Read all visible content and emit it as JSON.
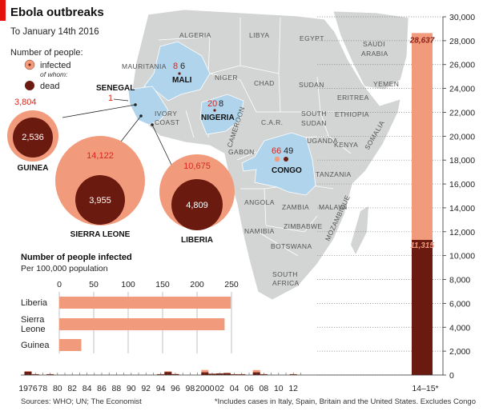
{
  "colors": {
    "infected": "#F19B7C",
    "dead": "#6B1A0F",
    "map_land": "#D3D4D4",
    "map_highlight": "#AFD4EC",
    "accent_red": "#E3120B",
    "number_red": "#D8281E"
  },
  "header": {
    "title": "Ebola outbreaks",
    "subtitle": "To January 14th 2016"
  },
  "legend": {
    "title": "Number of people:",
    "infected": "infected",
    "of_whom": "of whom:",
    "dead": "dead"
  },
  "map": {
    "country_labels": [
      "ALGERIA",
      "LIBYA",
      "EGYPT",
      "SAUDI",
      "ARABIA",
      "MAURITANIA",
      "NIGER",
      "CHAD",
      "SUDAN",
      "YEMEN",
      "ERITREA",
      "ETHIOPIA",
      "SOUTH",
      "SUDAN",
      "C.A.R.",
      "CAMEROON",
      "IVORY",
      "COAST",
      "GABON",
      "UGANDA",
      "KENYA",
      "SOMALIA",
      "TANZANIA",
      "ANGOLA",
      "ZAMBIA",
      "MALAWI",
      "NAMIBIA",
      "ZIMBABWE",
      "MOZAMBIQUE",
      "BOTSWANA",
      "SOUTH",
      "AFRICA"
    ],
    "highlights": [
      {
        "name": "MALI",
        "infected": "8",
        "dead": "6"
      },
      {
        "name": "NIGERIA",
        "infected": "20",
        "dead": "8"
      },
      {
        "name": "CONGO",
        "infected": "66",
        "dead": "49"
      },
      {
        "name": "SENEGAL",
        "infected": "1"
      }
    ]
  },
  "bubbles": [
    {
      "name": "GUINEA",
      "infected": "3,804",
      "dead": "2,536"
    },
    {
      "name": "SIERRA LEONE",
      "infected": "14,122",
      "dead": "3,955"
    },
    {
      "name": "LIBERIA",
      "infected": "10,675",
      "dead": "4,809"
    }
  ],
  "bar_panel": {
    "title": "Number of people infected",
    "subtitle": "Per 100,000 population"
  },
  "chart_data": [
    {
      "type": "bar",
      "orientation": "horizontal",
      "title": "Number of people infected",
      "subtitle": "Per 100,000 population",
      "categories": [
        "Liberia",
        "Sierra Leone",
        "Guinea"
      ],
      "category_labels": [
        [
          "Liberia"
        ],
        [
          "Sierra",
          "Leone"
        ],
        [
          "Guinea"
        ]
      ],
      "values": [
        249,
        240,
        32
      ],
      "xlim": [
        0,
        250
      ],
      "xticks": [
        "0",
        "50",
        "100",
        "150",
        "200",
        "250"
      ],
      "grid": true
    },
    {
      "type": "bar",
      "stacked": true,
      "series": [
        {
          "name": "infected",
          "values": [
            318,
            0,
            0,
            0,
            0,
            0,
            0,
            0,
            0,
            0,
            315,
            0,
            0,
            0,
            0,
            0,
            0,
            0,
            0,
            0,
            0,
            0,
            0,
            0,
            0,
            0,
            0,
            0,
            0,
            0,
            0,
            0,
            0,
            0,
            0,
            0,
            0,
            0,
            0,
            0,
            0,
            0,
            0,
            0,
            0,
            0,
            0,
            0,
            0,
            0,
            0,
            0,
            0,
            0,
            0,
            0,
            0,
            0,
            0,
            0,
            0,
            0,
            0,
            0,
            0,
            0,
            0,
            0,
            0,
            0,
            0,
            0,
            0,
            0,
            0,
            0,
            0,
            0,
            0,
            0,
            0,
            0,
            0,
            0,
            0,
            0,
            0,
            0,
            0,
            0,
            0,
            0,
            0,
            0,
            0,
            0,
            0,
            0,
            0,
            0,
            0
          ]
        },
        {
          "name": "dead",
          "values": [
            280,
            0,
            0,
            0,
            0,
            0,
            0,
            0,
            0,
            0,
            250,
            0,
            0,
            0,
            0,
            0,
            0,
            0,
            0,
            0,
            0,
            0,
            0,
            0,
            0,
            0,
            0,
            0,
            0,
            0,
            0,
            0,
            0,
            0,
            0,
            0,
            0,
            0,
            0,
            0,
            0,
            0,
            0,
            0,
            0,
            0,
            0,
            0,
            0,
            0,
            0,
            0,
            0,
            0,
            0,
            0,
            0,
            0,
            0,
            0,
            0,
            0,
            0,
            0,
            0,
            0,
            0,
            0,
            0,
            0,
            0,
            0,
            0,
            0,
            0,
            0,
            0,
            0,
            0,
            0,
            0,
            0,
            0,
            0,
            0,
            0,
            0,
            0,
            0,
            0,
            0,
            0,
            0,
            0,
            0,
            0,
            0,
            0,
            0,
            0,
            0
          ]
        }
      ],
      "timeline": [
        {
          "year": 1976,
          "infected": 318,
          "dead": 280
        },
        {
          "year": 1977,
          "infected": 1,
          "dead": 1
        },
        {
          "year": 1979,
          "infected": 34,
          "dead": 22
        },
        {
          "year": 1994,
          "infected": 52,
          "dead": 31
        },
        {
          "year": 1995,
          "infected": 315,
          "dead": 250
        },
        {
          "year": 1996,
          "infected": 91,
          "dead": 66
        },
        {
          "year": 2000,
          "infected": 425,
          "dead": 224
        },
        {
          "year": 2001,
          "infected": 124,
          "dead": 97
        },
        {
          "year": 2002,
          "infected": 143,
          "dead": 128
        },
        {
          "year": 2003,
          "infected": 178,
          "dead": 157
        },
        {
          "year": 2004,
          "infected": 17,
          "dead": 7
        },
        {
          "year": 2005,
          "infected": 12,
          "dead": 10
        },
        {
          "year": 2007,
          "infected": 413,
          "dead": 224
        },
        {
          "year": 2008,
          "infected": 32,
          "dead": 15
        },
        {
          "year": 2012,
          "infected": 62,
          "dead": 34
        },
        {
          "year": 2014,
          "infected": 28637,
          "dead": 11315
        }
      ],
      "x_tick_labels": [
        "1976",
        "78",
        "80",
        "82",
        "84",
        "86",
        "88",
        "90",
        "92",
        "94",
        "96",
        "98",
        "2000",
        "02",
        "04",
        "06",
        "08",
        "10",
        "12",
        "14–15*"
      ],
      "yticks": [
        "0",
        "2,000",
        "4,000",
        "6,000",
        "8,000",
        "10,000",
        "12,000",
        "14,000",
        "16,000",
        "18,000",
        "20,000",
        "22,000",
        "24,000",
        "26,000",
        "28,000",
        "30,000"
      ],
      "ylim": [
        0,
        30000
      ],
      "annotations": [
        "28,637",
        "11,315"
      ]
    }
  ],
  "footer": {
    "sources": "Sources: WHO; UN; The Economist",
    "note": "*Includes cases in Italy, Spain, Britain and the United States. Excludes Congo"
  }
}
